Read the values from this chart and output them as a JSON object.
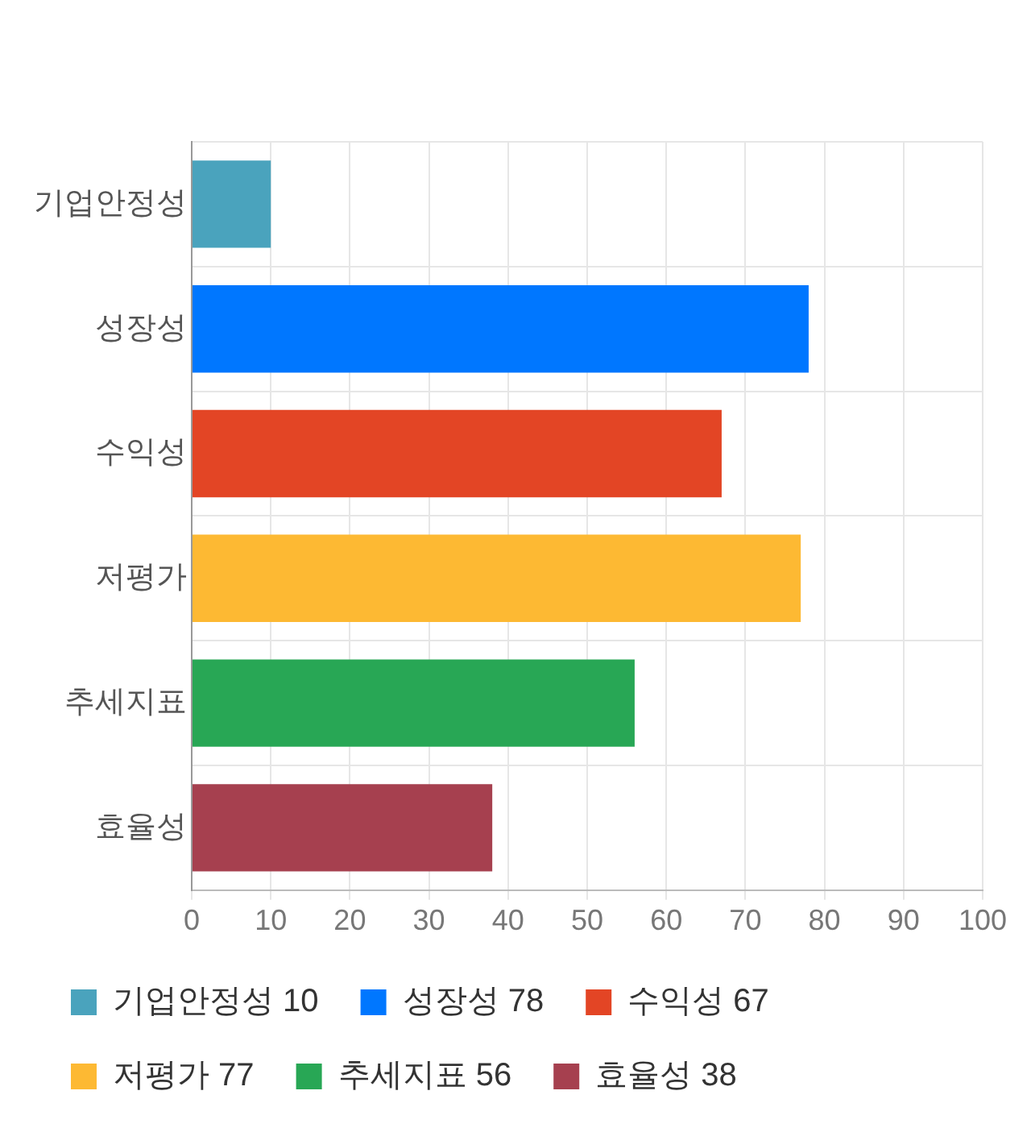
{
  "chart_data": {
    "type": "bar",
    "orientation": "horizontal",
    "categories": [
      "기업안정성",
      "성장성",
      "수익성",
      "저평가",
      "추세지표",
      "효율성"
    ],
    "series": [
      {
        "name": "기업안정성 10",
        "color": "#4aa3bd",
        "values": [
          10,
          null,
          null,
          null,
          null,
          null
        ]
      },
      {
        "name": "성장성 78",
        "color": "#0077ff",
        "values": [
          null,
          78,
          null,
          null,
          null,
          null
        ]
      },
      {
        "name": "수익성 67",
        "color": "#e34525",
        "values": [
          null,
          null,
          67,
          null,
          null,
          null
        ]
      },
      {
        "name": "저평가 77",
        "color": "#fdb933",
        "values": [
          null,
          null,
          null,
          77,
          null,
          null
        ]
      },
      {
        "name": "추세지표 56",
        "color": "#28a755",
        "values": [
          null,
          null,
          null,
          null,
          56,
          null
        ]
      },
      {
        "name": "효율성 38",
        "color": "#a6404f",
        "values": [
          null,
          null,
          null,
          null,
          null,
          38
        ]
      }
    ],
    "xlim": [
      0,
      100
    ],
    "xticks": [
      0,
      10,
      20,
      30,
      40,
      50,
      60,
      70,
      80,
      90,
      100
    ],
    "grid": true,
    "legend": "bottom"
  }
}
